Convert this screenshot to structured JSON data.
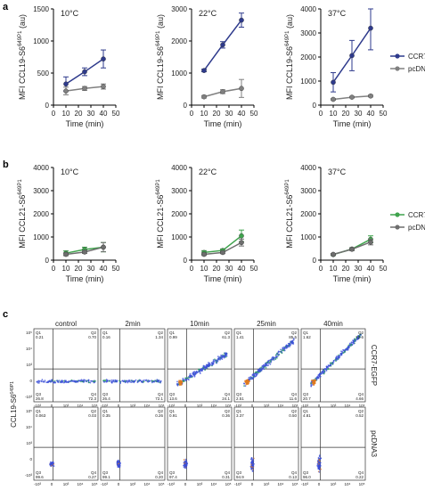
{
  "panel_labels": [
    "a",
    "b",
    "c"
  ],
  "chart_data": [
    {
      "type": "line",
      "panel": "a",
      "title": "10°C",
      "xlabel": "Time (min)",
      "ylabel": "MFI CCL19-S6",
      "ylabel_sup": "649P1",
      "ylabel_unit": "(au)",
      "x": [
        10,
        25,
        40
      ],
      "xlim": [
        0,
        50
      ],
      "ylim": [
        0,
        1500
      ],
      "xticks": [
        "0",
        "10",
        "20",
        "30",
        "40",
        "50"
      ],
      "yticks": [
        "0",
        "500",
        "1000",
        "1500"
      ],
      "series": [
        {
          "name": "CCR7-EGFP",
          "color": "#2e3a8c",
          "values": [
            330,
            520,
            720
          ],
          "err": [
            110,
            60,
            140
          ]
        },
        {
          "name": "pcDNA3",
          "color": "#808080",
          "values": [
            220,
            260,
            290
          ],
          "err": [
            60,
            30,
            40
          ]
        }
      ]
    },
    {
      "type": "line",
      "panel": "a",
      "title": "22°C",
      "xlabel": "Time (min)",
      "ylabel": "MFI CCL19-S6",
      "ylabel_sup": "649P1",
      "ylabel_unit": "(au)",
      "x": [
        10,
        25,
        40
      ],
      "xlim": [
        0,
        50
      ],
      "ylim": [
        0,
        3000
      ],
      "xticks": [
        "0",
        "10",
        "20",
        "30",
        "40",
        "50"
      ],
      "yticks": [
        "0",
        "1000",
        "2000",
        "3000"
      ],
      "series": [
        {
          "name": "CCR7-EGFP",
          "color": "#2e3a8c",
          "values": [
            1080,
            1880,
            2650
          ],
          "err": [
            40,
            100,
            220
          ]
        },
        {
          "name": "pcDNA3",
          "color": "#808080",
          "values": [
            260,
            420,
            520
          ],
          "err": [
            40,
            60,
            280
          ]
        }
      ]
    },
    {
      "type": "line",
      "panel": "a",
      "title": "37°C",
      "xlabel": "Time (min)",
      "ylabel": "MFI CCL19-S6",
      "ylabel_sup": "649P1",
      "ylabel_unit": "(au)",
      "x": [
        10,
        25,
        40
      ],
      "xlim": [
        0,
        50
      ],
      "ylim": [
        0,
        4000
      ],
      "xticks": [
        "0",
        "10",
        "20",
        "30",
        "40",
        "50"
      ],
      "yticks": [
        "0",
        "1000",
        "2000",
        "3000",
        "4000"
      ],
      "legend": "right",
      "series": [
        {
          "name": "CCR7-EGFP",
          "color": "#2e3a8c",
          "values": [
            950,
            2060,
            3200
          ],
          "err": [
            400,
            630,
            900
          ]
        },
        {
          "name": "pcDNA3",
          "color": "#808080",
          "values": [
            240,
            330,
            380
          ],
          "err": [
            30,
            30,
            40
          ]
        }
      ]
    },
    {
      "type": "line",
      "panel": "b",
      "title": "10°C",
      "xlabel": "Time (min)",
      "ylabel": "MFI CCL21-S6",
      "ylabel_sup": "649P1",
      "ylabel_unit": "",
      "x": [
        10,
        25,
        40
      ],
      "xlim": [
        0,
        50
      ],
      "ylim": [
        0,
        4000
      ],
      "xticks": [
        "0",
        "10",
        "20",
        "30",
        "40",
        "50"
      ],
      "yticks": [
        "0",
        "1000",
        "2000",
        "3000",
        "4000"
      ],
      "series": [
        {
          "name": "CCR7-EGFP",
          "color": "#3fa34d",
          "values": [
            300,
            460,
            560
          ],
          "err": [
            100,
            100,
            200
          ]
        },
        {
          "name": "pcDNA3",
          "color": "#6e6e6e",
          "values": [
            250,
            350,
            560
          ],
          "err": [
            60,
            60,
            200
          ]
        }
      ]
    },
    {
      "type": "line",
      "panel": "b",
      "title": "22°C",
      "xlabel": "Time (min)",
      "ylabel": "MFI CCL21-S6",
      "ylabel_sup": "649P1",
      "ylabel_unit": "",
      "x": [
        10,
        25,
        40
      ],
      "xlim": [
        0,
        50
      ],
      "ylim": [
        0,
        4000
      ],
      "xticks": [
        "0",
        "10",
        "20",
        "30",
        "40",
        "50"
      ],
      "yticks": [
        "0",
        "1000",
        "2000",
        "3000",
        "4000"
      ],
      "series": [
        {
          "name": "CCR7-EGFP",
          "color": "#3fa34d",
          "values": [
            330,
            420,
            1050
          ],
          "err": [
            80,
            60,
            250
          ]
        },
        {
          "name": "pcDNA3",
          "color": "#6e6e6e",
          "values": [
            250,
            330,
            760
          ],
          "err": [
            50,
            50,
            150
          ]
        }
      ]
    },
    {
      "type": "line",
      "panel": "b",
      "title": "37°C",
      "xlabel": "Time (min)",
      "ylabel": "MFI CCL21-S6",
      "ylabel_sup": "649P1",
      "ylabel_unit": "",
      "x": [
        10,
        25,
        40
      ],
      "xlim": [
        0,
        50
      ],
      "ylim": [
        0,
        4000
      ],
      "xticks": [
        "0",
        "10",
        "20",
        "30",
        "40",
        "50"
      ],
      "yticks": [
        "0",
        "1000",
        "2000",
        "3000",
        "4000"
      ],
      "legend": "right",
      "series": [
        {
          "name": "CCR7-EGFP",
          "color": "#3fa34d",
          "values": [
            240,
            480,
            900
          ],
          "err": [
            40,
            60,
            150
          ]
        },
        {
          "name": "pcDNA3",
          "color": "#6e6e6e",
          "values": [
            250,
            470,
            780
          ],
          "err": [
            40,
            60,
            120
          ]
        }
      ]
    },
    {
      "type": "scatter",
      "panel": "c",
      "subtype": "flow cytometry quadrant plots",
      "columns": [
        "control",
        "2min",
        "10min",
        "25min",
        "40min"
      ],
      "rows": [
        "CCR7-EGFP",
        "pcDNA3"
      ],
      "xlabel": "EGFP",
      "ylabel": "CCL19-S6",
      "ylabel_sup": "649P1",
      "quadrant_labels": [
        "Q1",
        "Q2",
        "Q3",
        "Q4"
      ],
      "x_tick_labels": [
        "-10³",
        "0",
        "10³",
        "10⁴",
        "10⁵"
      ],
      "y_tick_labels": [
        "10⁵",
        "10⁴",
        "10³",
        "0",
        "-10³"
      ],
      "quadrants": [
        [
          {
            "q1": "0.21",
            "q2": "0.70",
            "q3": "26.8",
            "q4": "72.3"
          },
          {
            "q1": "0.16",
            "q2": "1.34",
            "q3": "26.4",
            "q4": "72.1"
          },
          {
            "q1": "0.99",
            "q2": "61.3",
            "q3": "13.6",
            "q4": "24.1"
          },
          {
            "q1": "1.41",
            "q2": "85.5",
            "q3": "2.51",
            "q4": "11.6"
          },
          {
            "q1": "1.62",
            "q2": "72.6",
            "q3": "20.7",
            "q4": "4.66"
          }
        ],
        [
          {
            "q1": "0.063",
            "q2": "0.03",
            "q3": "99.6",
            "q4": "0.27"
          },
          {
            "q1": "0.35",
            "q2": "0.26",
            "q3": "99.1",
            "q4": "0.20"
          },
          {
            "q1": "0.91",
            "q2": "0.36",
            "q3": "97.4",
            "q4": "0.31"
          },
          {
            "q1": "3.37",
            "q2": "0.50",
            "q3": "94.9",
            "q4": "0.13"
          },
          {
            "q1": "4.81",
            "q2": "0.52",
            "q3": "96.0",
            "q4": "0.22"
          }
        ]
      ]
    }
  ]
}
